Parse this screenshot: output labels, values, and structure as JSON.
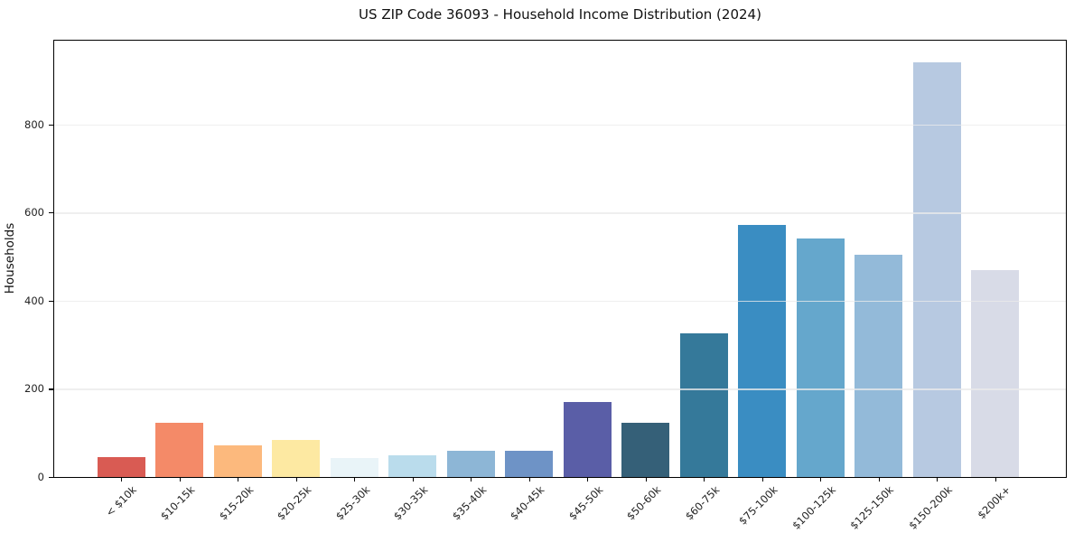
{
  "chart_data": {
    "type": "bar",
    "title": "US ZIP Code 36093 - Household Income Distribution (2024)",
    "xlabel": "",
    "ylabel": "Households",
    "categories": [
      "< $10k",
      "$10-15k",
      "$15-20k",
      "$20-25k",
      "$25-30k",
      "$30-35k",
      "$35-40k",
      "$40-45k",
      "$45-50k",
      "$50-60k",
      "$60-75k",
      "$75-100k",
      "$100-125k",
      "$125-150k",
      "$150-200k",
      "$200k+"
    ],
    "values": [
      45,
      124,
      72,
      85,
      44,
      50,
      59,
      60,
      170,
      124,
      326,
      572,
      542,
      505,
      940,
      470
    ],
    "bar_colors": [
      "#d95b53",
      "#f48a68",
      "#fcb97d",
      "#fde9a2",
      "#e9f4f8",
      "#badcec",
      "#8db6d6",
      "#6e93c6",
      "#5a5ea7",
      "#356078",
      "#35799a",
      "#3a8dc2",
      "#65a7cc",
      "#93bad9",
      "#b7c9e1",
      "#d8dbe7"
    ],
    "yticks": [
      0,
      200,
      400,
      600,
      800
    ],
    "ylim": [
      0,
      990
    ],
    "grid": "horizontal-light",
    "legend": "none",
    "frame_color": "#000000",
    "background_color": "#ffffff"
  }
}
